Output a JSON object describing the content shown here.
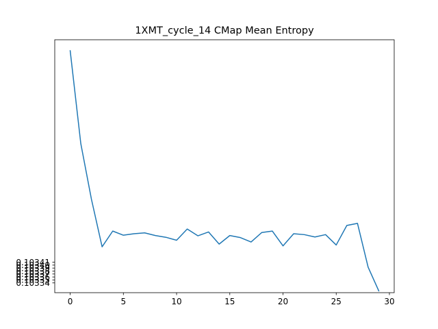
{
  "chart_data": {
    "type": "line",
    "title": "1XMT_cycle_14 CMap Mean Entropy",
    "xlabel": "",
    "ylabel": "",
    "xlim": [
      -1.45,
      30.45
    ],
    "ylim": [
      0.103307,
      0.104161
    ],
    "x_ticks": [
      0,
      5,
      10,
      15,
      20,
      25,
      30
    ],
    "x_tick_labels": [
      "0",
      "5",
      "10",
      "15",
      "20",
      "25",
      "30"
    ],
    "y_ticks": [
      0.10334,
      0.10335,
      0.10336,
      0.10337,
      0.10338,
      0.10339,
      0.1034,
      0.10341
    ],
    "y_tick_labels": [
      "0.10334",
      "0.10335",
      "0.10336",
      "0.10337",
      "0.10338",
      "0.10339",
      "0.10340",
      "0.10341"
    ],
    "grid": false,
    "series": [
      {
        "color": "#1f77b4",
        "x": [
          0,
          1,
          2,
          3,
          4,
          5,
          6,
          7,
          8,
          9,
          10,
          11,
          12,
          13,
          14,
          15,
          16,
          17,
          18,
          19,
          20,
          21,
          22,
          23,
          24,
          25,
          26,
          27,
          28,
          29
        ],
        "y": [
          0.104124,
          0.10381,
          0.103622,
          0.103462,
          0.103515,
          0.103501,
          0.103506,
          0.103509,
          0.1035,
          0.103494,
          0.103484,
          0.103522,
          0.103499,
          0.103512,
          0.103471,
          0.1035,
          0.103493,
          0.103478,
          0.10351,
          0.103515,
          0.103465,
          0.103506,
          0.103503,
          0.103495,
          0.103503,
          0.103468,
          0.103534,
          0.103541,
          0.103393,
          0.103313
        ]
      }
    ]
  }
}
